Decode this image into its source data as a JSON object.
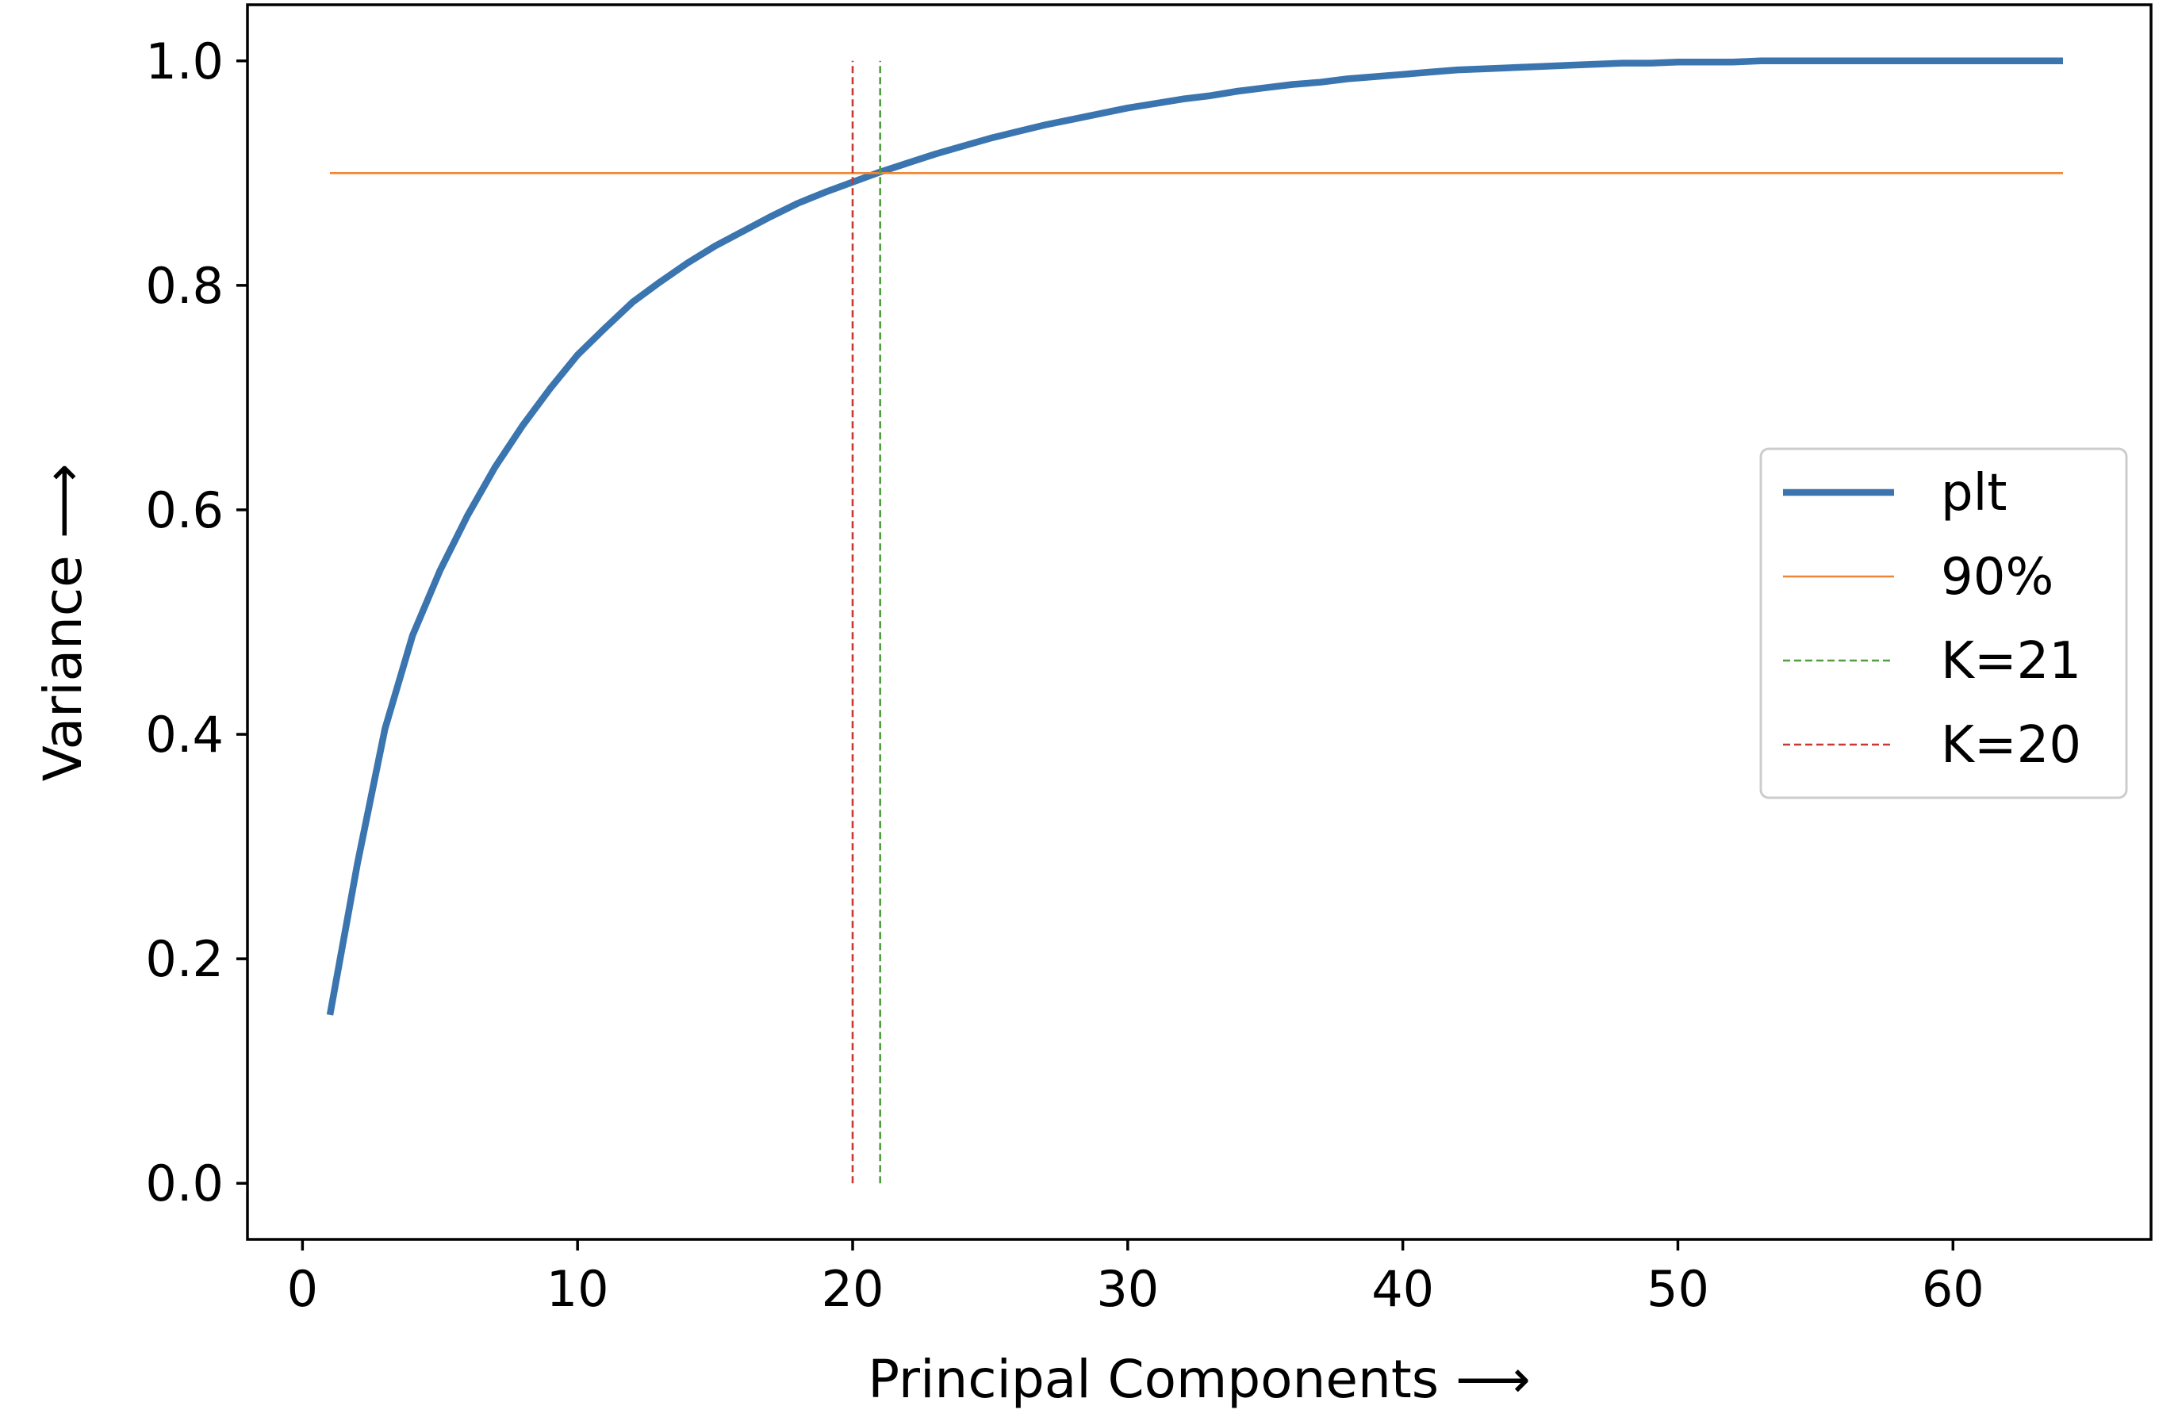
{
  "chart_data": {
    "type": "line",
    "xlabel": "Principal Components ⟶",
    "ylabel": "Variance ⟶",
    "xlim": [
      -2,
      67.2
    ],
    "ylim": [
      -0.05,
      1.05
    ],
    "x_ticks": [
      0,
      10,
      20,
      30,
      40,
      50,
      60
    ],
    "y_ticks": [
      0.0,
      0.2,
      0.4,
      0.6,
      0.8,
      1.0
    ],
    "x_tick_labels": [
      "0",
      "10",
      "20",
      "30",
      "40",
      "50",
      "60"
    ],
    "y_tick_labels": [
      "0.0",
      "0.2",
      "0.4",
      "0.6",
      "0.8",
      "1.0"
    ],
    "grid": false,
    "legend_position": "center-right",
    "series": [
      {
        "name": "plt",
        "style": "solid",
        "color": "#3b75af",
        "x": [
          1,
          2,
          3,
          4,
          5,
          6,
          7,
          8,
          9,
          10,
          11,
          12,
          13,
          14,
          15,
          16,
          17,
          18,
          19,
          20,
          21,
          22,
          23,
          24,
          25,
          26,
          27,
          28,
          29,
          30,
          31,
          32,
          33,
          34,
          35,
          36,
          37,
          38,
          39,
          40,
          41,
          42,
          43,
          44,
          45,
          46,
          47,
          48,
          49,
          50,
          51,
          52,
          53,
          54,
          55,
          56,
          57,
          58,
          59,
          60,
          61,
          62,
          63,
          64
        ],
        "y": [
          0.15,
          0.285,
          0.405,
          0.488,
          0.546,
          0.595,
          0.638,
          0.675,
          0.708,
          0.738,
          0.762,
          0.785,
          0.803,
          0.82,
          0.835,
          0.848,
          0.861,
          0.873,
          0.883,
          0.892,
          0.901,
          0.909,
          0.917,
          0.924,
          0.931,
          0.937,
          0.943,
          0.948,
          0.953,
          0.958,
          0.962,
          0.966,
          0.969,
          0.973,
          0.976,
          0.979,
          0.981,
          0.984,
          0.986,
          0.988,
          0.99,
          0.992,
          0.993,
          0.994,
          0.995,
          0.996,
          0.997,
          0.998,
          0.998,
          0.999,
          0.999,
          0.999,
          1.0,
          1.0,
          1.0,
          1.0,
          1.0,
          1.0,
          1.0,
          1.0,
          1.0,
          1.0,
          1.0,
          1.0
        ]
      },
      {
        "name": "90%",
        "style": "solid",
        "color": "#ef8636",
        "x": [
          1,
          64
        ],
        "y": [
          0.9,
          0.9
        ]
      },
      {
        "name": "K=21",
        "style": "dashed",
        "color": "#519e3e",
        "x": [
          21,
          21
        ],
        "y": [
          0.0,
          1.0
        ]
      },
      {
        "name": "K=20",
        "style": "dashed",
        "color": "#c53a32",
        "x": [
          20,
          20
        ],
        "y": [
          0.0,
          1.0
        ]
      }
    ]
  }
}
